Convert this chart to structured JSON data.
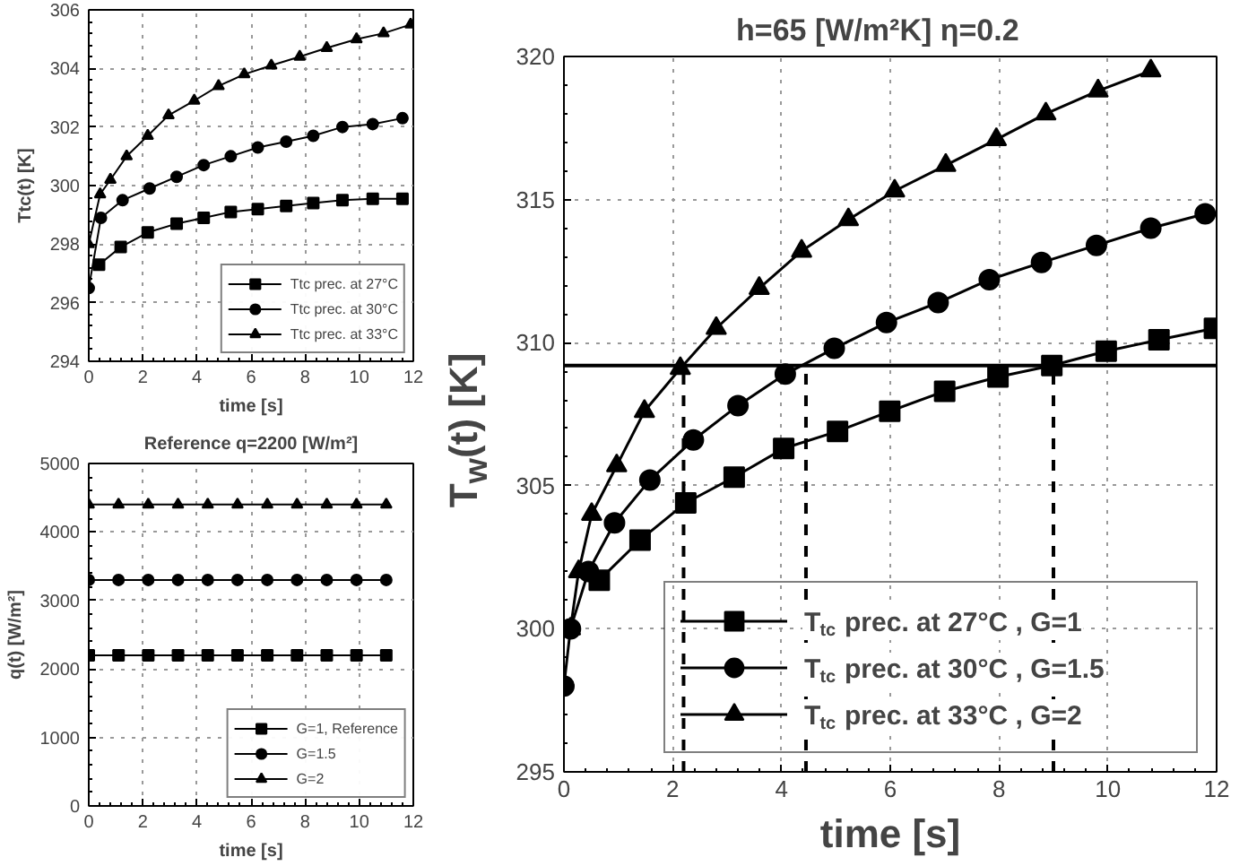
{
  "chart_data": [
    {
      "type": "line",
      "xlabel": "time [s]",
      "ylabel": "Ttc(t) [K]",
      "xlim": [
        0,
        12
      ],
      "ylim": [
        294,
        306
      ],
      "xticks": [
        0,
        2,
        4,
        6,
        8,
        10,
        12
      ],
      "yticks": [
        294,
        296,
        298,
        300,
        302,
        304,
        306
      ],
      "grid": true,
      "legend": "bottom right",
      "line_style": "solid",
      "series": [
        {
          "name": "Ttc prec. at 27°C",
          "color": "#000000",
          "marker": "square",
          "x": [
            0.38,
            1.18,
            2.18,
            3.25,
            4.25,
            5.25,
            6.25,
            7.3,
            8.3,
            9.38,
            10.5,
            11.6
          ],
          "values": [
            297.3,
            297.9,
            298.4,
            298.7,
            298.9,
            299.1,
            299.2,
            299.3,
            299.4,
            299.5,
            299.55,
            299.55
          ]
        },
        {
          "name": "Ttc prec. at 30°C",
          "color": "#000000",
          "marker": "circle",
          "x": [
            0,
            0.45,
            1.25,
            2.25,
            3.25,
            4.25,
            5.25,
            6.25,
            7.3,
            8.3,
            9.38,
            10.5,
            11.6
          ],
          "values": [
            296.5,
            298.9,
            299.5,
            299.9,
            300.3,
            300.7,
            301.0,
            301.3,
            301.5,
            301.7,
            302.0,
            302.1,
            302.3
          ]
        },
        {
          "name": "Ttc prec. at 33°C",
          "color": "#000000",
          "marker": "triangle",
          "x": [
            0,
            0.42,
            0.8,
            1.4,
            2.18,
            2.95,
            3.9,
            4.8,
            5.75,
            6.75,
            7.8,
            8.8,
            9.9,
            10.9,
            11.9
          ],
          "values": [
            298.0,
            299.7,
            300.2,
            301.0,
            301.7,
            302.4,
            302.9,
            303.4,
            303.8,
            304.1,
            304.4,
            304.7,
            305.0,
            305.2,
            305.5
          ]
        }
      ]
    },
    {
      "type": "line",
      "title": "Reference q=2200 [W/m²]",
      "xlabel": "time [s]",
      "ylabel": "q(t) [W/m²]",
      "xlim": [
        0,
        12
      ],
      "ylim": [
        0,
        5000
      ],
      "xticks": [
        0,
        2,
        4,
        6,
        8,
        10,
        12
      ],
      "yticks": [
        0,
        1000,
        2000,
        3000,
        4000,
        5000
      ],
      "grid": true,
      "legend": "bottom right",
      "line_style": "solid",
      "series": [
        {
          "name": "G=1, Reference",
          "color": "#000000",
          "marker": "square",
          "x": [
            0,
            1.1,
            2.2,
            3.3,
            4.4,
            5.5,
            6.6,
            7.7,
            8.8,
            9.9,
            11
          ],
          "values": [
            2200,
            2200,
            2200,
            2200,
            2200,
            2200,
            2200,
            2200,
            2200,
            2200,
            2200
          ]
        },
        {
          "name": "G=1.5",
          "color": "#000000",
          "marker": "circle",
          "x": [
            0,
            1.1,
            2.2,
            3.3,
            4.4,
            5.5,
            6.6,
            7.7,
            8.8,
            9.9,
            11
          ],
          "values": [
            3300,
            3300,
            3300,
            3300,
            3300,
            3300,
            3300,
            3300,
            3300,
            3300,
            3300
          ]
        },
        {
          "name": "G=2",
          "color": "#000000",
          "marker": "triangle",
          "x": [
            0,
            1.1,
            2.2,
            3.3,
            4.4,
            5.5,
            6.6,
            7.7,
            8.8,
            9.9,
            11
          ],
          "values": [
            4400,
            4400,
            4400,
            4400,
            4400,
            4400,
            4400,
            4400,
            4400,
            4400,
            4400
          ]
        }
      ]
    },
    {
      "type": "line",
      "title": "h=65 [W/m²K]    η=0.2",
      "xlabel": "time [s]",
      "ylabel": "T$_{w}$(t) [K]",
      "xlim": [
        0,
        12
      ],
      "ylim": [
        295,
        320
      ],
      "xticks": [
        0,
        2,
        4,
        6,
        8,
        10,
        12
      ],
      "yticks": [
        295,
        300,
        305,
        310,
        315,
        320
      ],
      "grid": true,
      "legend": "bottom right",
      "line_style": "solid",
      "ref_lines": [
        {
          "axis": "y",
          "value": 309.2,
          "color": "#000000",
          "line_style": "solid"
        },
        {
          "axis": "x",
          "value": 2.2,
          "color": "#000000",
          "line_style": "dashed"
        },
        {
          "axis": "x",
          "value": 4.45,
          "color": "#000000",
          "line_style": "dashed"
        },
        {
          "axis": "x",
          "value": 9.0,
          "color": "#000000",
          "line_style": "dashed"
        }
      ],
      "series": [
        {
          "name": "T$_{tc}$ prec. at 27°C , G=1",
          "color": "#000000",
          "marker": "square",
          "x": [
            0.65,
            1.4,
            2.24,
            3.13,
            4.04,
            5.03,
            5.99,
            7.0,
            7.98,
            8.97,
            9.97,
            10.94,
            11.96
          ],
          "values": [
            301.7,
            303.1,
            304.4,
            305.3,
            306.3,
            306.9,
            307.6,
            308.3,
            308.8,
            309.2,
            309.7,
            310.1,
            310.5
          ]
        },
        {
          "name": "T$_{tc}$ prec. at 30°C , G=1.5",
          "color": "#000000",
          "marker": "circle",
          "x": [
            0,
            0.12,
            0.45,
            0.93,
            1.58,
            2.38,
            3.2,
            4.07,
            4.97,
            5.93,
            6.88,
            7.82,
            8.78,
            9.79,
            10.79,
            11.79
          ],
          "values": [
            298.0,
            300.0,
            302.0,
            303.7,
            305.2,
            306.6,
            307.8,
            308.9,
            309.8,
            310.7,
            311.4,
            312.2,
            312.8,
            313.4,
            314.0,
            314.5
          ]
        },
        {
          "name": "T$_{tc}$ prec. at 33°C , G=2",
          "color": "#000000",
          "marker": "triangle",
          "x": [
            0.12,
            0.27,
            0.51,
            0.97,
            1.48,
            2.14,
            2.8,
            3.59,
            4.37,
            5.23,
            6.08,
            7.02,
            7.95,
            8.86,
            9.82,
            10.79
          ],
          "values": [
            300.0,
            302.0,
            304.0,
            305.7,
            307.6,
            309.1,
            310.5,
            311.9,
            313.2,
            314.3,
            315.3,
            316.2,
            317.1,
            318.0,
            318.8,
            319.5
          ]
        }
      ]
    }
  ]
}
